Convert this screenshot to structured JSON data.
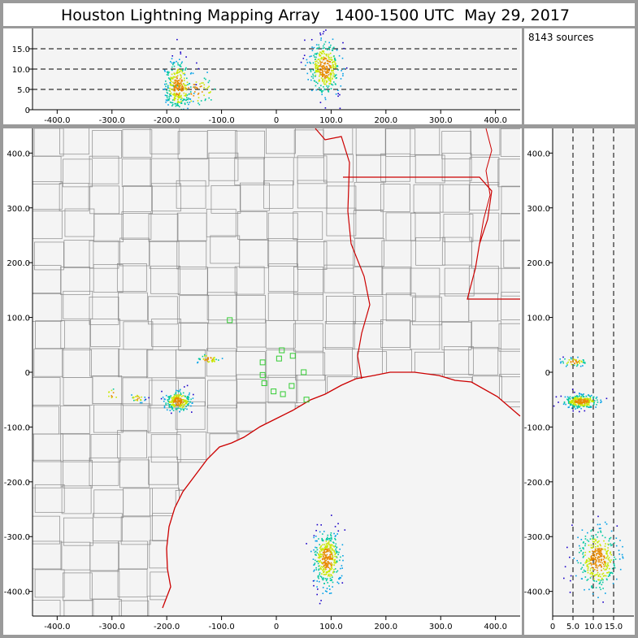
{
  "title": "Houston Lightning Mapping Array   1400-1500 UTC  May 29, 2017",
  "source_count_label": "8143 sources",
  "colors": {
    "frame": "#999999",
    "panel_bg": "#f4f4f4",
    "county_lines": "#8a8a8a",
    "state_coast_lines": "#cc0000",
    "stations": "#33cc33",
    "density_low": "#1a00c8",
    "density_mid": "#00c8a0",
    "density_high": "#e88a00"
  },
  "chart_data": [
    {
      "name": "altitude-vs-east-west",
      "type": "scatter",
      "x_ticks": [
        "-400.0",
        "-300.0",
        "-200.0",
        "-100.0",
        "0",
        "100.0",
        "200.0",
        "300.0",
        "400.0"
      ],
      "y_ticks": [
        "0",
        "5.0",
        "10.0",
        "15.0"
      ],
      "xlim": [
        -445,
        445
      ],
      "ylim": [
        0,
        20
      ],
      "reference_lines_y": [
        5,
        10,
        15
      ],
      "clusters": [
        {
          "x": -180,
          "y": 6,
          "sx": 12,
          "sy": 3.0,
          "n": 320
        },
        {
          "x": -150,
          "y": 5,
          "sx": 22,
          "sy": 2.0,
          "n": 60
        },
        {
          "x": 88,
          "y": 10.5,
          "sx": 14,
          "sy": 3.2,
          "n": 380
        }
      ]
    },
    {
      "name": "plan-view",
      "type": "scatter",
      "x_ticks": [
        "-400.0",
        "-300.0",
        "-200.0",
        "-100.0",
        "0",
        "100.0",
        "200.0",
        "300.0",
        "400.0"
      ],
      "y_ticks": [
        "400.0",
        "300.0",
        "200.0",
        "100.0",
        "0",
        "-100.0",
        "-200.0",
        "-300.0",
        "-400.0"
      ],
      "xlim": [
        -445,
        445
      ],
      "ylim": [
        -445,
        445
      ],
      "clusters": [
        {
          "x": -180,
          "y": -52,
          "sx": 12,
          "sy": 9,
          "n": 240
        },
        {
          "x": 92,
          "y": -340,
          "sx": 12,
          "sy": 25,
          "n": 420
        },
        {
          "x": -125,
          "y": 25,
          "sx": 10,
          "sy": 5,
          "n": 40
        },
        {
          "x": -255,
          "y": -46,
          "sx": 6,
          "sy": 4,
          "n": 25
        },
        {
          "x": -300,
          "y": -40,
          "sx": 6,
          "sy": 6,
          "n": 10
        }
      ],
      "stations": [
        {
          "x": -85,
          "y": 95
        },
        {
          "x": -25,
          "y": 18
        },
        {
          "x": 5,
          "y": 25
        },
        {
          "x": 10,
          "y": 40
        },
        {
          "x": 30,
          "y": 30
        },
        {
          "x": 50,
          "y": 0
        },
        {
          "x": -25,
          "y": -5
        },
        {
          "x": -22,
          "y": -20
        },
        {
          "x": -5,
          "y": -35
        },
        {
          "x": 12,
          "y": -40
        },
        {
          "x": 28,
          "y": -25
        },
        {
          "x": 55,
          "y": -50
        }
      ]
    },
    {
      "name": "north-south-vs-altitude",
      "type": "scatter",
      "x_ticks": [
        "0",
        "5.0",
        "10.0",
        "15.0"
      ],
      "y_ticks": [
        "400.0",
        "300.0",
        "200.0",
        "100.0",
        "0",
        "-100.0",
        "-200.0",
        "-300.0",
        "-400.0"
      ],
      "xlim": [
        0,
        20
      ],
      "ylim": [
        -445,
        445
      ],
      "reference_lines_x": [
        5,
        10,
        15
      ],
      "clusters": [
        {
          "x": 7,
          "y": -52,
          "sx": 2.2,
          "sy": 6,
          "n": 300
        },
        {
          "x": 5,
          "y": 20,
          "sx": 1.5,
          "sy": 4,
          "n": 50
        },
        {
          "x": 11,
          "y": -340,
          "sx": 2.5,
          "sy": 28,
          "n": 380
        }
      ]
    }
  ]
}
